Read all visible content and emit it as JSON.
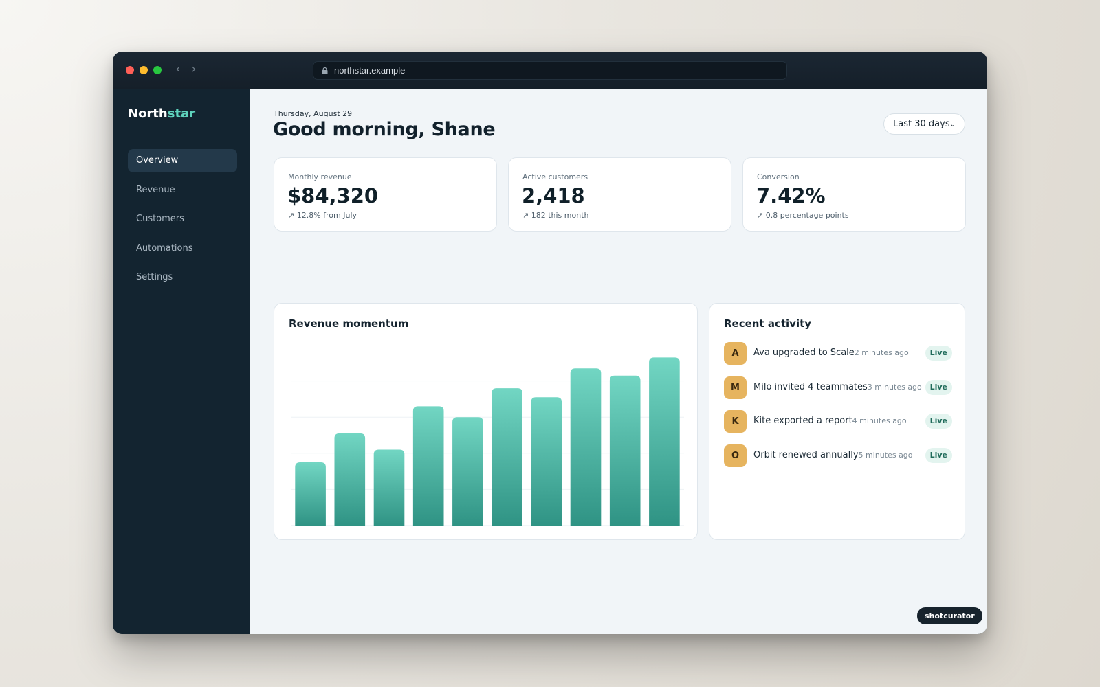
{
  "browser": {
    "url": "northstar.example"
  },
  "brand": {
    "name_primary": "North",
    "name_accent": "star"
  },
  "sidebar": {
    "items": [
      {
        "label": "Overview",
        "active": true
      },
      {
        "label": "Revenue",
        "active": false
      },
      {
        "label": "Customers",
        "active": false
      },
      {
        "label": "Automations",
        "active": false
      },
      {
        "label": "Settings",
        "active": false
      }
    ]
  },
  "header": {
    "date": "Thursday, August 29",
    "greeting": "Good morning, Shane",
    "range_label": "Last 30 days",
    "range_icon": "chevron-down-icon"
  },
  "stats": [
    {
      "label": "Monthly revenue",
      "value": "$84,320",
      "delta": "↗ 12.8% from July"
    },
    {
      "label": "Active customers",
      "value": "2,418",
      "delta": "↗ 182 this month"
    },
    {
      "label": "Conversion",
      "value": "7.42%",
      "delta": "↗ 0.8 percentage points"
    }
  ],
  "chart": {
    "title": "Revenue momentum"
  },
  "chart_data": {
    "type": "bar",
    "values": [
      35,
      51,
      42,
      66,
      60,
      76,
      71,
      87,
      83,
      93
    ],
    "ylim": [
      0,
      100
    ],
    "grid": true,
    "bar_color_top": "#72d6c3",
    "bar_color_bottom": "#2f9384"
  },
  "activity": {
    "title": "Recent activity",
    "items": [
      {
        "initial": "A",
        "text": "Ava upgraded to Scale",
        "time": "2 minutes ago",
        "badge": "Live"
      },
      {
        "initial": "M",
        "text": "Milo invited 4 teammates",
        "time": "3 minutes ago",
        "badge": "Live"
      },
      {
        "initial": "K",
        "text": "Kite exported a report",
        "time": "4 minutes ago",
        "badge": "Live"
      },
      {
        "initial": "O",
        "text": "Orbit renewed annually",
        "time": "5 minutes ago",
        "badge": "Live"
      }
    ]
  },
  "watermark": "shotcurator",
  "colors": {
    "sidebar_bg": "#132430",
    "accent": "#5fd3bd",
    "avatar_bg": "#e6b45f",
    "badge_bg": "#e3f4ef"
  }
}
